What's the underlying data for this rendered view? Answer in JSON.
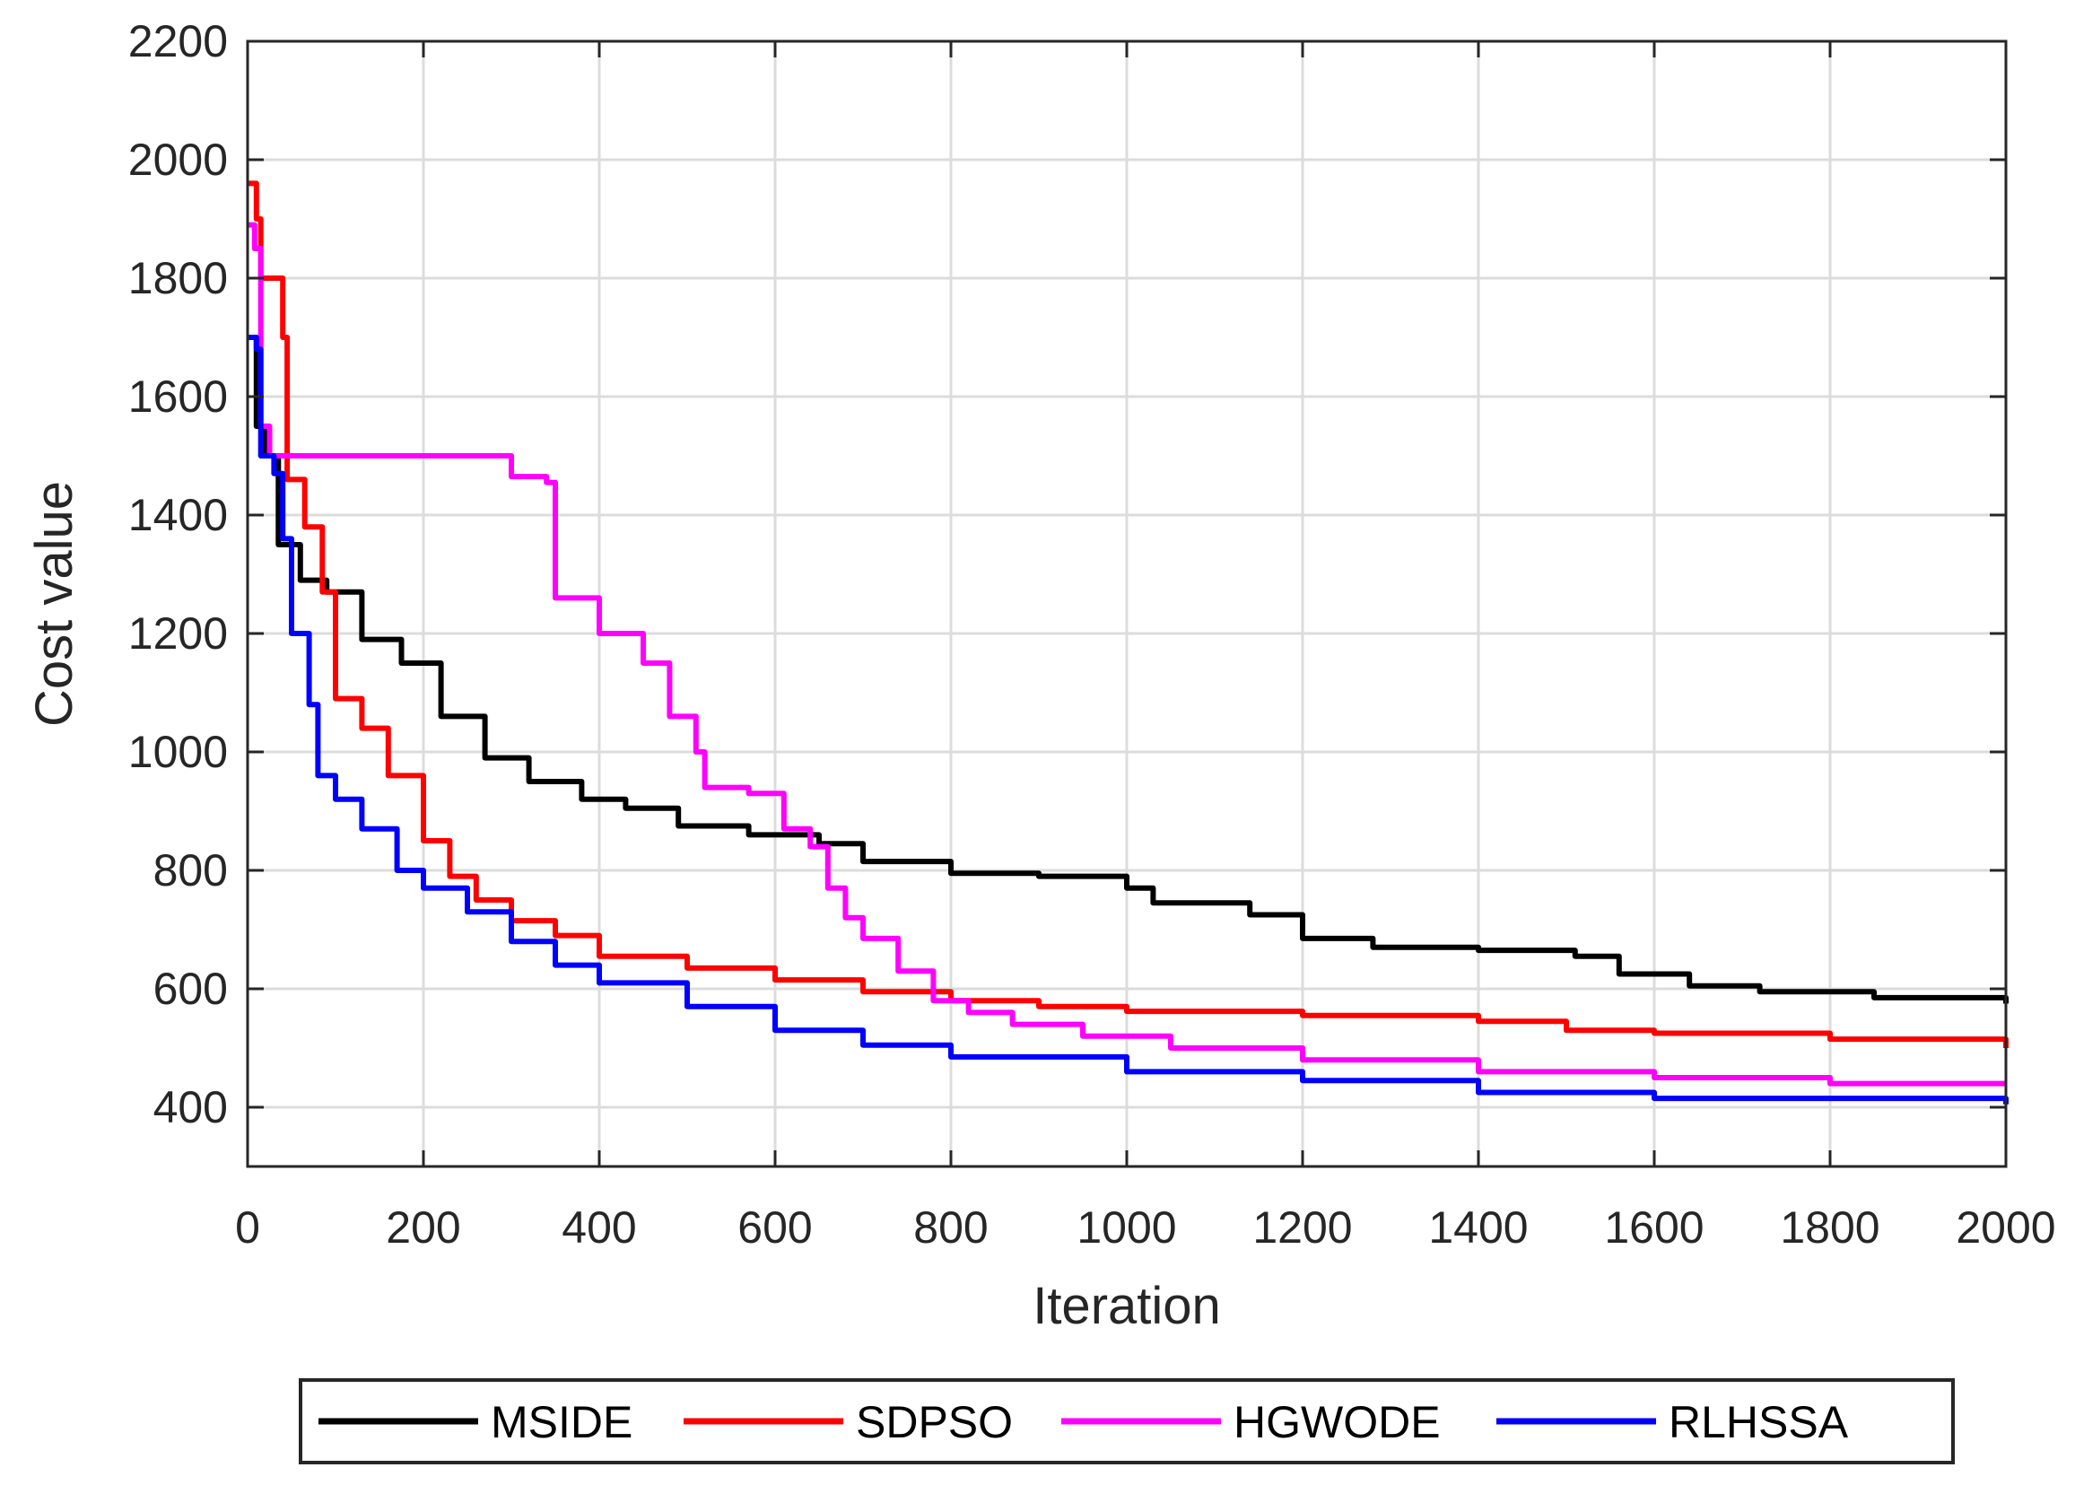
{
  "chart_data": {
    "type": "line",
    "title": "",
    "xlabel": "Iteration",
    "ylabel": "Cost value",
    "xlim": [
      0,
      2000
    ],
    "ylim": [
      300,
      2200
    ],
    "xticks": [
      0,
      200,
      400,
      600,
      800,
      1000,
      1200,
      1400,
      1600,
      1800,
      2000
    ],
    "yticks": [
      400,
      600,
      800,
      1000,
      1200,
      1400,
      1600,
      1800,
      2000,
      2200
    ],
    "grid": true,
    "legend_position": "bottom-outside",
    "series": [
      {
        "name": "MSIDE",
        "color": "#000000",
        "points": [
          [
            0,
            1700
          ],
          [
            10,
            1550
          ],
          [
            20,
            1500
          ],
          [
            35,
            1350
          ],
          [
            60,
            1290
          ],
          [
            90,
            1270
          ],
          [
            130,
            1190
          ],
          [
            175,
            1150
          ],
          [
            220,
            1060
          ],
          [
            270,
            990
          ],
          [
            320,
            950
          ],
          [
            380,
            920
          ],
          [
            430,
            905
          ],
          [
            490,
            875
          ],
          [
            570,
            860
          ],
          [
            650,
            845
          ],
          [
            700,
            815
          ],
          [
            800,
            795
          ],
          [
            900,
            790
          ],
          [
            1000,
            770
          ],
          [
            1030,
            745
          ],
          [
            1140,
            725
          ],
          [
            1200,
            685
          ],
          [
            1280,
            670
          ],
          [
            1400,
            665
          ],
          [
            1510,
            655
          ],
          [
            1560,
            625
          ],
          [
            1640,
            605
          ],
          [
            1720,
            595
          ],
          [
            1850,
            585
          ],
          [
            2000,
            575
          ]
        ]
      },
      {
        "name": "SDPSO",
        "color": "#ff0000",
        "points": [
          [
            0,
            1960
          ],
          [
            10,
            1900
          ],
          [
            15,
            1800
          ],
          [
            40,
            1700
          ],
          [
            45,
            1460
          ],
          [
            65,
            1380
          ],
          [
            85,
            1270
          ],
          [
            100,
            1090
          ],
          [
            130,
            1040
          ],
          [
            160,
            960
          ],
          [
            200,
            850
          ],
          [
            230,
            790
          ],
          [
            260,
            750
          ],
          [
            300,
            715
          ],
          [
            350,
            690
          ],
          [
            400,
            655
          ],
          [
            500,
            635
          ],
          [
            600,
            615
          ],
          [
            700,
            595
          ],
          [
            800,
            580
          ],
          [
            900,
            570
          ],
          [
            1000,
            562
          ],
          [
            1200,
            555
          ],
          [
            1400,
            545
          ],
          [
            1500,
            530
          ],
          [
            1600,
            525
          ],
          [
            1800,
            515
          ],
          [
            2000,
            500
          ]
        ]
      },
      {
        "name": "HGWODE",
        "color": "#ff00ff",
        "points": [
          [
            0,
            1890
          ],
          [
            8,
            1850
          ],
          [
            15,
            1550
          ],
          [
            25,
            1500
          ],
          [
            100,
            1500
          ],
          [
            290,
            1500
          ],
          [
            300,
            1465
          ],
          [
            340,
            1455
          ],
          [
            350,
            1260
          ],
          [
            390,
            1260
          ],
          [
            400,
            1200
          ],
          [
            450,
            1150
          ],
          [
            480,
            1060
          ],
          [
            510,
            1000
          ],
          [
            520,
            940
          ],
          [
            570,
            930
          ],
          [
            610,
            870
          ],
          [
            640,
            840
          ],
          [
            660,
            770
          ],
          [
            680,
            720
          ],
          [
            700,
            685
          ],
          [
            740,
            630
          ],
          [
            780,
            580
          ],
          [
            820,
            560
          ],
          [
            870,
            540
          ],
          [
            950,
            520
          ],
          [
            1050,
            500
          ],
          [
            1200,
            480
          ],
          [
            1400,
            460
          ],
          [
            1600,
            450
          ],
          [
            1800,
            440
          ],
          [
            2000,
            440
          ]
        ]
      },
      {
        "name": "RLHSSA",
        "color": "#0000ff",
        "points": [
          [
            0,
            1700
          ],
          [
            10,
            1680
          ],
          [
            15,
            1500
          ],
          [
            30,
            1470
          ],
          [
            40,
            1360
          ],
          [
            50,
            1200
          ],
          [
            70,
            1080
          ],
          [
            80,
            960
          ],
          [
            100,
            920
          ],
          [
            130,
            870
          ],
          [
            170,
            800
          ],
          [
            200,
            770
          ],
          [
            250,
            730
          ],
          [
            300,
            680
          ],
          [
            350,
            640
          ],
          [
            400,
            610
          ],
          [
            500,
            570
          ],
          [
            600,
            530
          ],
          [
            700,
            505
          ],
          [
            800,
            485
          ],
          [
            1000,
            460
          ],
          [
            1200,
            445
          ],
          [
            1400,
            425
          ],
          [
            1600,
            415
          ],
          [
            2000,
            405
          ]
        ]
      }
    ]
  }
}
